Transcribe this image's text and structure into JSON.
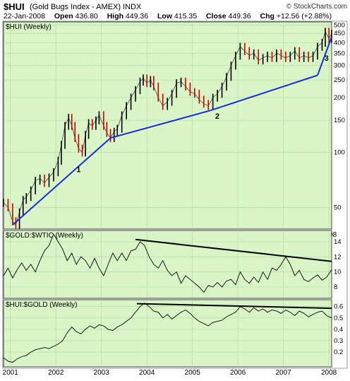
{
  "header": {
    "symbol": "$HUI",
    "name": "(Gold Bugs Index - AMEX) INDX",
    "logo": "© StockCharts.com",
    "date": "22-Jan-2008",
    "open_label": "Open",
    "open": "436.80",
    "high_label": "High",
    "high": "449.36",
    "low_label": "Low",
    "low": "415.35",
    "close_label": "Close",
    "close": "449.36",
    "chg_label": "Chg",
    "chg": "+12.56 (+2.88%)"
  },
  "colors": {
    "panel_bg": "#d9f5c7",
    "grid": "#7fbf6a",
    "up_bar": "#000000",
    "down_bar": "#cc0000",
    "trendline_blue": "#1a2fd0",
    "trendline_black": "#000000"
  },
  "chart_data": [
    {
      "type": "line",
      "title": "$HUI (Weekly)",
      "scale": "log",
      "ylim": [
        38,
        520
      ],
      "yticks": [
        50,
        100,
        150,
        200,
        250,
        300,
        350,
        400,
        450,
        500
      ],
      "xticks": [
        "2001",
        "2002",
        "2003",
        "2004",
        "2005",
        "2006",
        "2007",
        "2008"
      ],
      "xrange": [
        2000.85,
        2008.06
      ],
      "series": [
        {
          "x": [
            2000.85,
            2000.95,
            2001.05,
            2001.12,
            2001.2,
            2001.28,
            2001.35,
            2001.45,
            2001.55,
            2001.65,
            2001.75,
            2001.85,
            2001.95,
            2002.05,
            2002.12,
            2002.2,
            2002.28,
            2002.35,
            2002.42,
            2002.5,
            2002.58,
            2002.65,
            2002.72,
            2002.8,
            2002.88,
            2002.95,
            2003.05,
            2003.12,
            2003.2,
            2003.28,
            2003.35,
            2003.45,
            2003.55,
            2003.65,
            2003.75,
            2003.85,
            2003.92,
            2004.0,
            2004.08,
            2004.15,
            2004.25,
            2004.35,
            2004.45,
            2004.55,
            2004.65,
            2004.75,
            2004.85,
            2004.95,
            2005.05,
            2005.15,
            2005.25,
            2005.35,
            2005.45,
            2005.55,
            2005.65,
            2005.75,
            2005.85,
            2005.95,
            2006.05,
            2006.15,
            2006.25,
            2006.35,
            2006.45,
            2006.55,
            2006.65,
            2006.75,
            2006.85,
            2006.95,
            2007.05,
            2007.15,
            2007.25,
            2007.35,
            2007.45,
            2007.55,
            2007.65,
            2007.75,
            2007.85,
            2007.92,
            2008.0,
            2008.06
          ],
          "y": [
            53,
            50,
            42,
            40,
            47,
            55,
            57,
            62,
            70,
            72,
            68,
            73,
            78,
            90,
            110,
            140,
            155,
            140,
            120,
            105,
            100,
            125,
            145,
            140,
            150,
            160,
            140,
            128,
            120,
            130,
            135,
            160,
            180,
            200,
            220,
            245,
            255,
            240,
            250,
            230,
            200,
            180,
            190,
            210,
            240,
            245,
            230,
            215,
            210,
            195,
            185,
            180,
            200,
            210,
            230,
            260,
            300,
            340,
            380,
            360,
            340,
            350,
            320,
            330,
            340,
            330,
            350,
            340,
            330,
            340,
            360,
            330,
            340,
            330,
            340,
            380,
            400,
            460,
            420,
            449
          ]
        }
      ],
      "trendlines": [
        {
          "x": [
            2001.05,
            2003.2
          ],
          "y": [
            40,
            120
          ]
        },
        {
          "x": [
            2003.2,
            2005.4
          ],
          "y": [
            120,
            170
          ]
        },
        {
          "x": [
            2005.4,
            2007.75
          ],
          "y": [
            170,
            265
          ]
        },
        {
          "x": [
            2007.75,
            2008.06
          ],
          "y": [
            265,
            430
          ]
        }
      ],
      "annotations": [
        {
          "text": "1",
          "x": 2002.45,
          "y": 78
        },
        {
          "text": "2",
          "x": 2005.5,
          "y": 153
        },
        {
          "text": "3",
          "x": 2007.9,
          "y": 318
        }
      ]
    },
    {
      "type": "line",
      "title": "$GOLD:$WTIC (Weekly)",
      "ylim": [
        6.5,
        15.5
      ],
      "yticks": [
        8,
        10,
        12,
        14
      ],
      "xticks": [
        "2001",
        "2002",
        "2003",
        "2004",
        "2005",
        "2006",
        "2007",
        "2008"
      ],
      "xrange": [
        2000.85,
        2008.06
      ],
      "series": [
        {
          "x": [
            2000.85,
            2000.95,
            2001.05,
            2001.15,
            2001.25,
            2001.35,
            2001.45,
            2001.55,
            2001.65,
            2001.75,
            2001.85,
            2001.95,
            2002.05,
            2002.15,
            2002.25,
            2002.35,
            2002.45,
            2002.55,
            2002.65,
            2002.75,
            2002.85,
            2002.95,
            2003.05,
            2003.15,
            2003.25,
            2003.35,
            2003.45,
            2003.55,
            2003.65,
            2003.75,
            2003.85,
            2003.95,
            2004.05,
            2004.15,
            2004.25,
            2004.35,
            2004.45,
            2004.55,
            2004.65,
            2004.75,
            2004.85,
            2004.95,
            2005.05,
            2005.15,
            2005.25,
            2005.35,
            2005.45,
            2005.55,
            2005.65,
            2005.75,
            2005.85,
            2005.95,
            2006.05,
            2006.15,
            2006.25,
            2006.35,
            2006.45,
            2006.55,
            2006.65,
            2006.75,
            2006.85,
            2006.95,
            2007.05,
            2007.15,
            2007.25,
            2007.35,
            2007.45,
            2007.55,
            2007.65,
            2007.75,
            2007.85,
            2007.95,
            2008.06
          ],
          "y": [
            9.5,
            10.5,
            9.2,
            10.3,
            11.2,
            10.2,
            11.0,
            10.0,
            11.5,
            12.8,
            13.5,
            15.0,
            14.0,
            13.0,
            11.5,
            12.5,
            11.0,
            12.0,
            11.5,
            10.5,
            11.8,
            10.5,
            9.5,
            11.0,
            12.5,
            11.5,
            12.5,
            11.5,
            12.8,
            13.0,
            14.0,
            13.5,
            12.0,
            11.0,
            10.5,
            11.5,
            10.2,
            9.5,
            10.0,
            8.5,
            9.5,
            9.0,
            8.5,
            8.0,
            7.3,
            8.2,
            8.0,
            8.6,
            8.0,
            8.8,
            9.0,
            8.3,
            10.0,
            9.0,
            8.5,
            9.3,
            8.6,
            10.0,
            9.0,
            10.5,
            10.2,
            11.0,
            12.0,
            11.0,
            9.5,
            10.2,
            9.0,
            8.7,
            9.2,
            9.6,
            8.9,
            9.3,
            10.3
          ]
        }
      ],
      "trendlines": [
        {
          "x": [
            2003.75,
            2008.06
          ],
          "y": [
            14.3,
            11.4
          ]
        }
      ]
    },
    {
      "type": "line",
      "title": "$HUI:$GOLD (Weekly)",
      "ylim": [
        0.07,
        0.66
      ],
      "yticks": [
        0.2,
        0.3,
        0.4,
        0.5,
        0.6
      ],
      "xticks": [
        "2001",
        "2002",
        "2003",
        "2004",
        "2005",
        "2006",
        "2007",
        "2008"
      ],
      "xrange": [
        2000.85,
        2008.06
      ],
      "series": [
        {
          "x": [
            2000.85,
            2000.95,
            2001.05,
            2001.15,
            2001.25,
            2001.35,
            2001.45,
            2001.55,
            2001.65,
            2001.75,
            2001.85,
            2001.95,
            2002.05,
            2002.15,
            2002.25,
            2002.35,
            2002.45,
            2002.55,
            2002.65,
            2002.75,
            2002.85,
            2002.95,
            2003.05,
            2003.15,
            2003.25,
            2003.35,
            2003.45,
            2003.55,
            2003.65,
            2003.75,
            2003.85,
            2003.95,
            2004.05,
            2004.15,
            2004.25,
            2004.35,
            2004.45,
            2004.55,
            2004.65,
            2004.75,
            2004.85,
            2004.95,
            2005.05,
            2005.15,
            2005.25,
            2005.35,
            2005.45,
            2005.55,
            2005.65,
            2005.75,
            2005.85,
            2005.95,
            2006.05,
            2006.15,
            2006.25,
            2006.35,
            2006.45,
            2006.55,
            2006.65,
            2006.75,
            2006.85,
            2006.95,
            2007.05,
            2007.15,
            2007.25,
            2007.35,
            2007.45,
            2007.55,
            2007.65,
            2007.75,
            2007.85,
            2007.95,
            2008.06
          ],
          "y": [
            0.15,
            0.12,
            0.11,
            0.14,
            0.16,
            0.17,
            0.2,
            0.22,
            0.23,
            0.24,
            0.23,
            0.25,
            0.27,
            0.3,
            0.37,
            0.42,
            0.38,
            0.36,
            0.4,
            0.43,
            0.41,
            0.44,
            0.43,
            0.4,
            0.39,
            0.42,
            0.44,
            0.47,
            0.5,
            0.55,
            0.6,
            0.63,
            0.6,
            0.56,
            0.55,
            0.5,
            0.53,
            0.49,
            0.52,
            0.55,
            0.57,
            0.54,
            0.5,
            0.47,
            0.45,
            0.43,
            0.46,
            0.47,
            0.48,
            0.51,
            0.53,
            0.55,
            0.6,
            0.58,
            0.55,
            0.59,
            0.56,
            0.58,
            0.55,
            0.57,
            0.56,
            0.54,
            0.57,
            0.55,
            0.52,
            0.56,
            0.54,
            0.51,
            0.53,
            0.55,
            0.56,
            0.52,
            0.5
          ]
        }
      ],
      "trendlines": [
        {
          "x": [
            2003.78,
            2008.06
          ],
          "y": [
            0.625,
            0.585
          ]
        }
      ]
    }
  ]
}
